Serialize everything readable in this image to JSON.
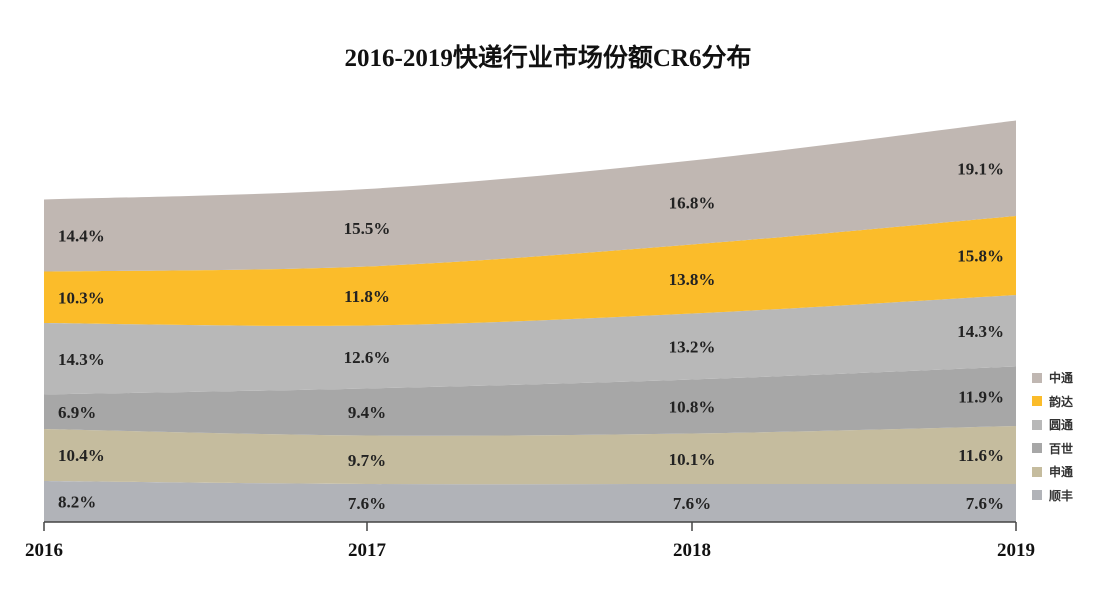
{
  "chart_data": {
    "type": "area",
    "stacked": true,
    "title": "2016-2019快递行业市场份额CR6分布",
    "xlabel": "",
    "ylabel": "",
    "categories": [
      "2016",
      "2017",
      "2018",
      "2019"
    ],
    "series": [
      {
        "name": "顺丰",
        "color": "#b1b3b8",
        "values": [
          8.2,
          7.6,
          7.6,
          7.6
        ],
        "labels": [
          "8.2%",
          "7.6%",
          "7.6%",
          "7.6%"
        ]
      },
      {
        "name": "申通",
        "color": "#c5bc9e",
        "values": [
          10.4,
          9.7,
          10.1,
          11.6
        ],
        "labels": [
          "10.4%",
          "9.7%",
          "10.1%",
          "11.6%"
        ]
      },
      {
        "name": "百世",
        "color": "#a7a7a7",
        "values": [
          6.9,
          9.4,
          10.8,
          11.9
        ],
        "labels": [
          "6.9%",
          "9.4%",
          "10.8%",
          "11.9%"
        ]
      },
      {
        "name": "圆通",
        "color": "#b8b8b8",
        "values": [
          14.3,
          12.6,
          13.2,
          14.3
        ],
        "labels": [
          "14.3%",
          "12.6%",
          "13.2%",
          "14.3%"
        ]
      },
      {
        "name": "韵达",
        "color": "#fbbc2a",
        "values": [
          10.3,
          11.8,
          13.8,
          15.8
        ],
        "labels": [
          "10.3%",
          "11.8%",
          "13.8%",
          "15.8%"
        ]
      },
      {
        "name": "中通",
        "color": "#c0b7b2",
        "values": [
          14.4,
          15.5,
          16.8,
          19.1
        ],
        "labels": [
          "14.4%",
          "15.5%",
          "16.8%",
          "19.1%"
        ]
      }
    ],
    "legend_order": [
      "中通",
      "韵达",
      "圆通",
      "百世",
      "申通",
      "顺丰"
    ],
    "legend_position": "right",
    "grid": false
  }
}
